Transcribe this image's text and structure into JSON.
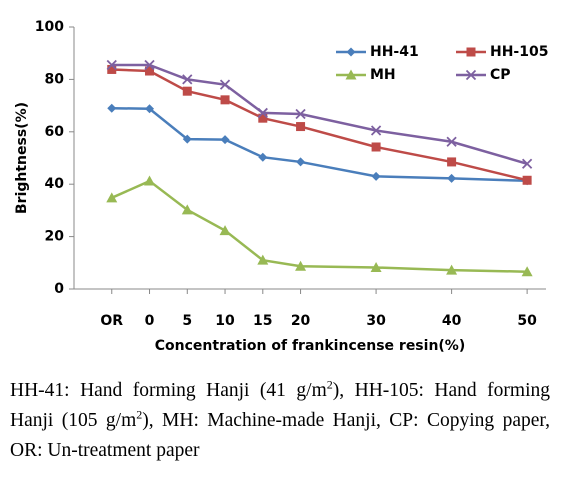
{
  "chart_data": {
    "type": "line",
    "ylabel": "Brightness(%)",
    "xlabel": "Concentration of frankincense resin(%)",
    "x": [
      -5,
      0,
      5,
      10,
      15,
      20,
      30,
      40,
      50
    ],
    "xlim": [
      -10,
      52.5
    ],
    "xticks": [
      {
        "value": -5,
        "label": "OR"
      },
      0,
      5,
      10,
      15,
      20,
      30,
      40,
      50
    ],
    "ylim": [
      0,
      100
    ],
    "yticks": [
      0,
      20,
      40,
      60,
      80,
      100
    ],
    "grid": false,
    "series": [
      {
        "name": "HH-41",
        "color": "#4a7ebb",
        "marker": "diamond",
        "values": [
          69,
          68.8,
          57.2,
          57,
          50.3,
          48.5,
          43,
          42.2,
          41.3
        ]
      },
      {
        "name": "HH-105",
        "color": "#be4b48",
        "marker": "square",
        "values": [
          83.8,
          83.2,
          75.5,
          72.2,
          65.2,
          62,
          54.2,
          48.5,
          41.5
        ]
      },
      {
        "name": "MH",
        "color": "#98b954",
        "marker": "triangle",
        "values": [
          34.8,
          41.2,
          30.2,
          22.3,
          11,
          8.7,
          8.2,
          7.2,
          6.6
        ]
      },
      {
        "name": "CP",
        "color": "#7d60a0",
        "marker": "cross",
        "values": [
          85.5,
          85.5,
          80,
          78,
          67.2,
          66.8,
          60.5,
          56.2,
          47.8
        ]
      }
    ]
  },
  "caption": [
    "HH-41: Hand forming Hanji (41 g/m",
    "2",
    "), HH-105: Hand forming Hanji (105 g/m",
    "2",
    "), MH: Machine-made Hanji, CP: Copying paper, OR: Un-treatment paper"
  ]
}
